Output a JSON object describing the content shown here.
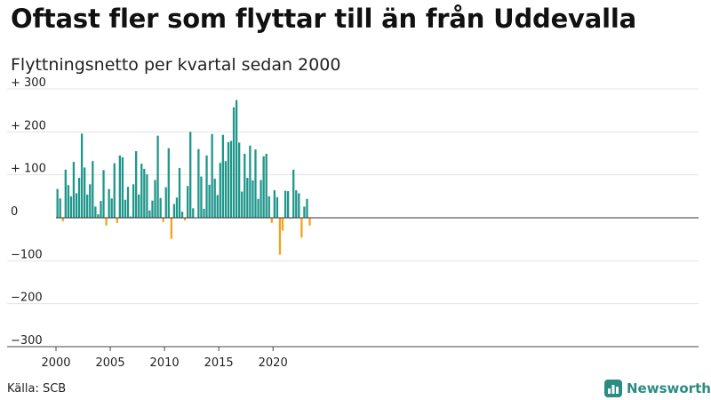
{
  "title": "Oftast fler som flyttar till än från Uddevalla",
  "subtitle": "Flyttningsnetto per kvartal sedan 2000",
  "source": "Källa: SCB",
  "brand": "Newsworthy",
  "colors": {
    "positive": "#1f968b",
    "negative": "#f5a11c",
    "grid": "#e3e3e3",
    "brand": "#2a8c83"
  },
  "icons": {
    "logo": "bar-chart-badge-icon"
  },
  "chart_data": {
    "type": "bar",
    "x_start": "2000-Q1",
    "x_ticks": [
      "2000",
      "2005",
      "2010",
      "2015",
      "2020"
    ],
    "y_ticks": [
      "+ 300",
      "+ 200",
      "+ 100",
      "0",
      "−100",
      "−200",
      "−300"
    ],
    "ylim": [
      -300,
      300
    ],
    "xlabel": "",
    "ylabel": "",
    "grid": true,
    "values": [
      67,
      45,
      -8,
      112,
      76,
      50,
      130,
      57,
      93,
      196,
      117,
      54,
      78,
      132,
      26,
      8,
      39,
      111,
      -18,
      67,
      45,
      127,
      -12,
      145,
      141,
      42,
      72,
      3,
      78,
      155,
      54,
      126,
      114,
      101,
      17,
      40,
      88,
      191,
      46,
      -10,
      71,
      162,
      -49,
      32,
      47,
      116,
      14,
      -6,
      74,
      200,
      22,
      0,
      160,
      96,
      21,
      145,
      77,
      195,
      91,
      53,
      128,
      193,
      132,
      176,
      179,
      257,
      274,
      175,
      61,
      149,
      93,
      168,
      87,
      159,
      44,
      88,
      143,
      149,
      50,
      -12,
      64,
      48,
      -86,
      -30,
      63,
      62,
      -2,
      112,
      64,
      57,
      -46,
      26,
      44,
      -18
    ]
  }
}
